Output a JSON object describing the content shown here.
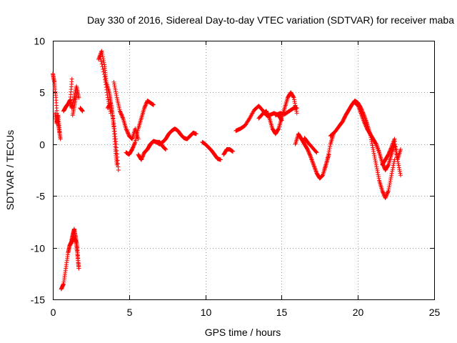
{
  "chart_data": {
    "type": "scatter",
    "title": "Day 330 of 2016, Sidereal Day-to-day VTEC variation (SDTVAR) for receiver maba",
    "xlabel": "GPS time / hours",
    "ylabel": "SDTVAR / TECUs",
    "xlim": [
      0,
      25
    ],
    "ylim": [
      -15,
      10
    ],
    "xticks": [
      0,
      5,
      10,
      15,
      20,
      25
    ],
    "yticks": [
      -15,
      -10,
      -5,
      0,
      5,
      10
    ],
    "grid": true,
    "marker": "plus",
    "color": "#ff0000",
    "series": [
      {
        "name": "seg-01",
        "x": [
          0.0,
          0.1,
          0.2,
          0.3,
          0.4,
          0.5
        ],
        "y": [
          6.8,
          6.0,
          4.5,
          2.5,
          1.5,
          0.5
        ]
      },
      {
        "name": "seg-02",
        "x": [
          0.15,
          0.25,
          0.35,
          0.45
        ],
        "y": [
          3.0,
          2.0,
          2.8,
          1.2
        ]
      },
      {
        "name": "seg-03",
        "x": [
          0.55,
          0.7,
          0.85,
          1.0,
          1.1,
          1.2,
          1.3,
          1.4,
          1.5,
          1.6,
          1.7
        ],
        "y": [
          -14.0,
          -13.5,
          -12.0,
          -10.5,
          -9.8,
          -9.5,
          -8.8,
          -8.2,
          -9.0,
          -10.0,
          -12.0
        ]
      },
      {
        "name": "seg-04",
        "x": [
          1.2,
          1.35,
          1.5,
          1.6,
          1.7
        ],
        "y": [
          -9.6,
          -9.0,
          -9.3,
          -10.5,
          -12.0
        ]
      },
      {
        "name": "seg-05",
        "x": [
          0.7,
          0.85,
          1.0,
          1.15,
          1.25
        ],
        "y": [
          3.2,
          3.6,
          3.9,
          4.3,
          6.3
        ]
      },
      {
        "name": "seg-06",
        "x": [
          1.1,
          1.25,
          1.4,
          1.55,
          1.7
        ],
        "y": [
          4.2,
          3.5,
          4.5,
          5.6,
          4.5
        ]
      },
      {
        "name": "seg-07",
        "x": [
          1.3,
          1.45,
          1.6
        ],
        "y": [
          2.8,
          4.0,
          5.2
        ]
      },
      {
        "name": "seg-08",
        "x": [
          1.8,
          1.95
        ],
        "y": [
          3.5,
          3.2
        ]
      },
      {
        "name": "seg-09",
        "x": [
          3.0,
          3.2,
          3.4,
          3.5,
          3.7,
          3.8,
          3.9,
          4.0,
          4.1,
          4.2
        ],
        "y": [
          8.2,
          9.0,
          7.5,
          6.0,
          5.0,
          4.0,
          3.0,
          1.5,
          -0.5,
          -2.0
        ]
      },
      {
        "name": "seg-10",
        "x": [
          3.1,
          3.4,
          3.6,
          3.8
        ],
        "y": [
          8.5,
          6.5,
          4.5,
          3.0
        ]
      },
      {
        "name": "seg-11",
        "x": [
          3.6,
          3.8,
          4.0,
          4.15,
          4.3
        ],
        "y": [
          3.5,
          4.0,
          2.0,
          0.0,
          -2.5
        ]
      },
      {
        "name": "seg-12",
        "x": [
          4.0,
          4.2,
          4.4,
          4.6,
          4.8,
          5.0,
          5.2,
          5.4,
          5.6
        ],
        "y": [
          6.0,
          4.5,
          3.2,
          2.5,
          1.5,
          0.8,
          0.5,
          1.5,
          0.5
        ]
      },
      {
        "name": "seg-13",
        "x": [
          4.8,
          5.0,
          5.2,
          5.4,
          5.6,
          5.8,
          6.0,
          6.2,
          6.4,
          6.6
        ],
        "y": [
          -0.8,
          -1.0,
          -0.5,
          0.2,
          1.5,
          2.5,
          3.5,
          4.2,
          4.0,
          3.8
        ]
      },
      {
        "name": "seg-14",
        "x": [
          5.6,
          5.8,
          6.0,
          6.2,
          6.4,
          6.6,
          6.8,
          7.0,
          7.2,
          7.4
        ],
        "y": [
          -1.0,
          -1.5,
          -0.8,
          -0.5,
          0.0,
          0.3,
          0.2,
          0.2,
          -0.2,
          -0.5
        ]
      },
      {
        "name": "seg-15",
        "x": [
          6.2,
          6.4,
          6.6,
          6.8,
          7.0,
          7.2,
          7.4,
          7.6,
          7.8,
          8.0,
          8.2,
          8.4,
          8.6,
          8.8,
          9.0,
          9.2,
          9.4
        ],
        "y": [
          -0.5,
          0.0,
          0.3,
          0.2,
          0.0,
          0.2,
          0.5,
          1.0,
          1.3,
          1.5,
          1.3,
          0.9,
          0.6,
          0.5,
          0.8,
          1.1,
          1.0
        ]
      },
      {
        "name": "seg-16",
        "x": [
          9.8,
          10.0,
          10.2,
          10.4,
          10.6,
          10.8,
          11.0
        ],
        "y": [
          0.2,
          0.0,
          -0.3,
          -0.6,
          -1.0,
          -1.4,
          -1.5
        ]
      },
      {
        "name": "seg-17",
        "x": [
          11.2,
          11.4,
          11.6,
          11.8
        ],
        "y": [
          -1.0,
          -0.5,
          -0.5,
          -0.7
        ]
      },
      {
        "name": "seg-18",
        "x": [
          12.0,
          12.3,
          12.6,
          12.9,
          13.2,
          13.5,
          13.8,
          14.0,
          14.2,
          14.5,
          14.8,
          15.0
        ],
        "y": [
          1.3,
          1.5,
          1.8,
          2.5,
          3.3,
          3.7,
          3.2,
          2.8,
          2.8,
          3.0,
          2.8,
          2.3
        ]
      },
      {
        "name": "seg-19",
        "x": [
          13.5,
          13.8,
          14.0,
          14.2,
          14.4,
          14.6,
          14.8,
          15.0,
          15.2,
          15.4,
          15.6,
          15.8,
          16.0
        ],
        "y": [
          2.5,
          3.0,
          3.2,
          2.5,
          1.5,
          1.0,
          1.5,
          2.5,
          3.5,
          4.5,
          5.0,
          4.5,
          3.0
        ]
      },
      {
        "name": "seg-20",
        "x": [
          14.6,
          14.9,
          15.2,
          15.5,
          15.8,
          16.0
        ],
        "y": [
          2.8,
          3.0,
          2.9,
          3.2,
          3.5,
          3.5
        ]
      },
      {
        "name": "seg-21",
        "x": [
          15.9,
          16.1,
          16.3,
          16.5,
          16.7,
          16.9,
          17.1,
          17.3,
          17.5,
          17.7,
          17.9,
          18.1
        ],
        "y": [
          0.0,
          1.0,
          0.5,
          0.0,
          -0.5,
          -1.2,
          -2.0,
          -2.8,
          -3.3,
          -3.0,
          -2.0,
          -1.0
        ]
      },
      {
        "name": "seg-22",
        "x": [
          16.5,
          16.7,
          17.0,
          17.3
        ],
        "y": [
          0.6,
          0.2,
          -0.3,
          -0.8
        ]
      },
      {
        "name": "seg-23",
        "x": [
          17.8,
          18.0,
          18.2,
          18.4
        ],
        "y": [
          -2.5,
          -1.5,
          0.0,
          1.0
        ]
      },
      {
        "name": "seg-24",
        "x": [
          18.2,
          18.5,
          18.8,
          19.0,
          19.2,
          19.4,
          19.6,
          19.8,
          20.0,
          20.2,
          20.4,
          20.6,
          20.8,
          21.0,
          21.2,
          21.4,
          21.6,
          21.8,
          22.0,
          22.2,
          22.4
        ],
        "y": [
          0.8,
          1.2,
          1.8,
          2.2,
          2.8,
          3.3,
          3.8,
          4.2,
          4.0,
          3.5,
          2.8,
          2.0,
          1.0,
          -0.5,
          -2.0,
          -3.5,
          -4.5,
          -5.2,
          -4.5,
          -3.0,
          -1.5
        ]
      },
      {
        "name": "seg-25",
        "x": [
          19.8,
          20.0,
          20.2,
          20.4,
          20.6,
          20.8,
          21.0,
          21.2,
          21.4,
          21.6,
          21.8,
          22.0,
          22.2,
          22.4,
          22.6,
          22.8
        ],
        "y": [
          4.0,
          3.8,
          3.0,
          2.2,
          1.5,
          1.0,
          0.5,
          0.0,
          -0.8,
          -1.8,
          -2.5,
          -2.0,
          -1.0,
          0.0,
          -1.5,
          -3.0
        ]
      },
      {
        "name": "seg-26",
        "x": [
          21.6,
          21.8,
          22.0,
          22.2,
          22.4,
          22.6,
          22.8
        ],
        "y": [
          -2.0,
          -1.5,
          -1.0,
          -0.3,
          0.5,
          -1.5,
          -0.5
        ]
      }
    ]
  }
}
